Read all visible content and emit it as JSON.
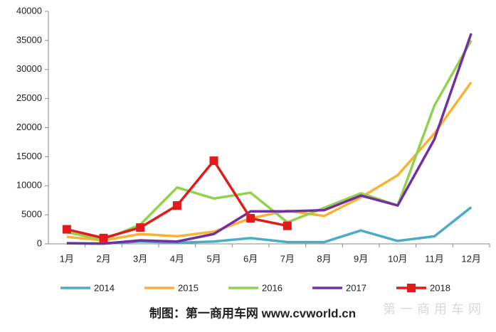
{
  "chart_data": {
    "type": "line",
    "categories": [
      "1月",
      "2月",
      "3月",
      "4月",
      "5月",
      "6月",
      "7月",
      "8月",
      "9月",
      "10月",
      "11月",
      "12月"
    ],
    "series": [
      {
        "name": "2014",
        "color": "#4bacc6",
        "values": [
          100,
          50,
          400,
          200,
          400,
          1000,
          300,
          300,
          2300,
          500,
          1300,
          6300
        ]
      },
      {
        "name": "2015",
        "color": "#f9b233",
        "values": [
          1200,
          600,
          1700,
          1300,
          2100,
          4400,
          5700,
          4800,
          8000,
          11800,
          19000,
          27800
        ]
      },
      {
        "name": "2016",
        "color": "#92d050",
        "values": [
          2000,
          700,
          3300,
          9700,
          7800,
          8800,
          3700,
          6200,
          8700,
          6600,
          23800,
          35000
        ]
      },
      {
        "name": "2017",
        "color": "#7030a0",
        "values": [
          100,
          50,
          600,
          400,
          1700,
          5600,
          5600,
          5800,
          8300,
          6600,
          18000,
          36200
        ]
      },
      {
        "name": "2018",
        "color": "#e31a1c",
        "marker": "square",
        "values": [
          2500,
          1000,
          2800,
          6600,
          14300,
          4400,
          3100,
          null,
          null,
          null,
          null,
          null
        ]
      }
    ],
    "ylim": [
      0,
      40000
    ],
    "yticks": [
      0,
      5000,
      10000,
      15000,
      20000,
      25000,
      30000,
      35000,
      40000
    ],
    "grid": false,
    "legend": "bottom",
    "footer": "制图：第一商用车网 www.cvworld.cn",
    "watermark": "第一商用车网"
  }
}
